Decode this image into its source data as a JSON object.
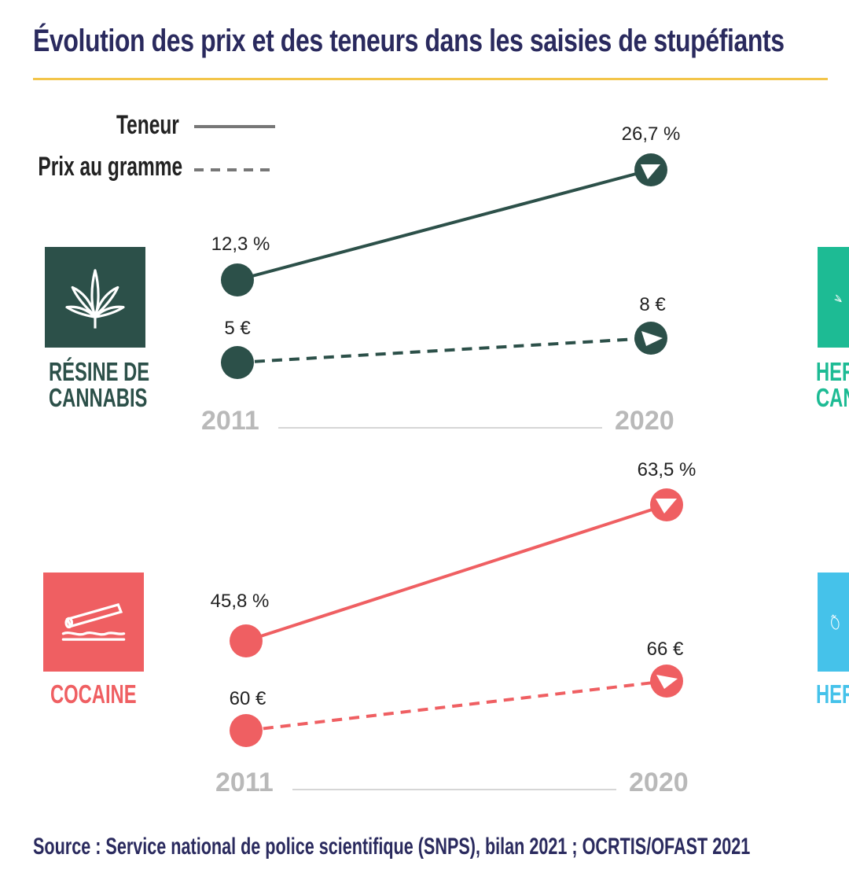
{
  "title": "Évolution des prix et des teneurs dans les saisies de stupéfiants",
  "legend": {
    "teneur": "Teneur",
    "prix": "Prix au gramme"
  },
  "colors": {
    "resine": "#2c5049",
    "herbe": "#1dbb94",
    "cocaine": "#ef5f62",
    "heroine": "#45c2ea",
    "title": "#2a2a5e",
    "rule": "#f3c54a",
    "year": "#b9b9b9"
  },
  "panels": {
    "resine": {
      "label_line1": "RÉSINE DE",
      "label_line2": "CANNABIS",
      "icon": "cannabis-leaf-icon",
      "year_start": "2011",
      "year_end": "2020",
      "teneur_start": "12,3 %",
      "teneur_end": "26,7 %",
      "prix_start": "5 €",
      "prix_end": "8 €"
    },
    "cocaine": {
      "label": "COCAINE",
      "icon": "cocaine-powder-icon",
      "year_start": "2011",
      "year_end": "2020",
      "teneur_start": "45,8 %",
      "teneur_end": "63,5 %",
      "prix_start": "60 €",
      "prix_end": "66 €"
    },
    "herbe_partial": {
      "label_line1": "HER",
      "label_line2": "CAN",
      "icon": "cannabis-leaf-icon"
    },
    "heroine_partial": {
      "label": "HER",
      "icon": "poppy-icon"
    }
  },
  "chart_data": [
    {
      "type": "line",
      "x": [
        "2011",
        "2020"
      ],
      "series": [
        {
          "name": "Teneur",
          "values": [
            12.3,
            26.7
          ]
        },
        {
          "name": "Prix au gramme",
          "values": [
            5,
            8
          ]
        }
      ]
    },
    {
      "type": "line",
      "x": [
        "2011",
        "2020"
      ],
      "series": [
        {
          "name": "Teneur",
          "values": [
            45.8,
            63.5
          ]
        },
        {
          "name": "Prix au gramme",
          "values": [
            60,
            66
          ]
        }
      ]
    }
  ],
  "source": "Source : Service national de police scientifique (SNPS), bilan 2021 ; OCRTIS/OFAST 2021"
}
